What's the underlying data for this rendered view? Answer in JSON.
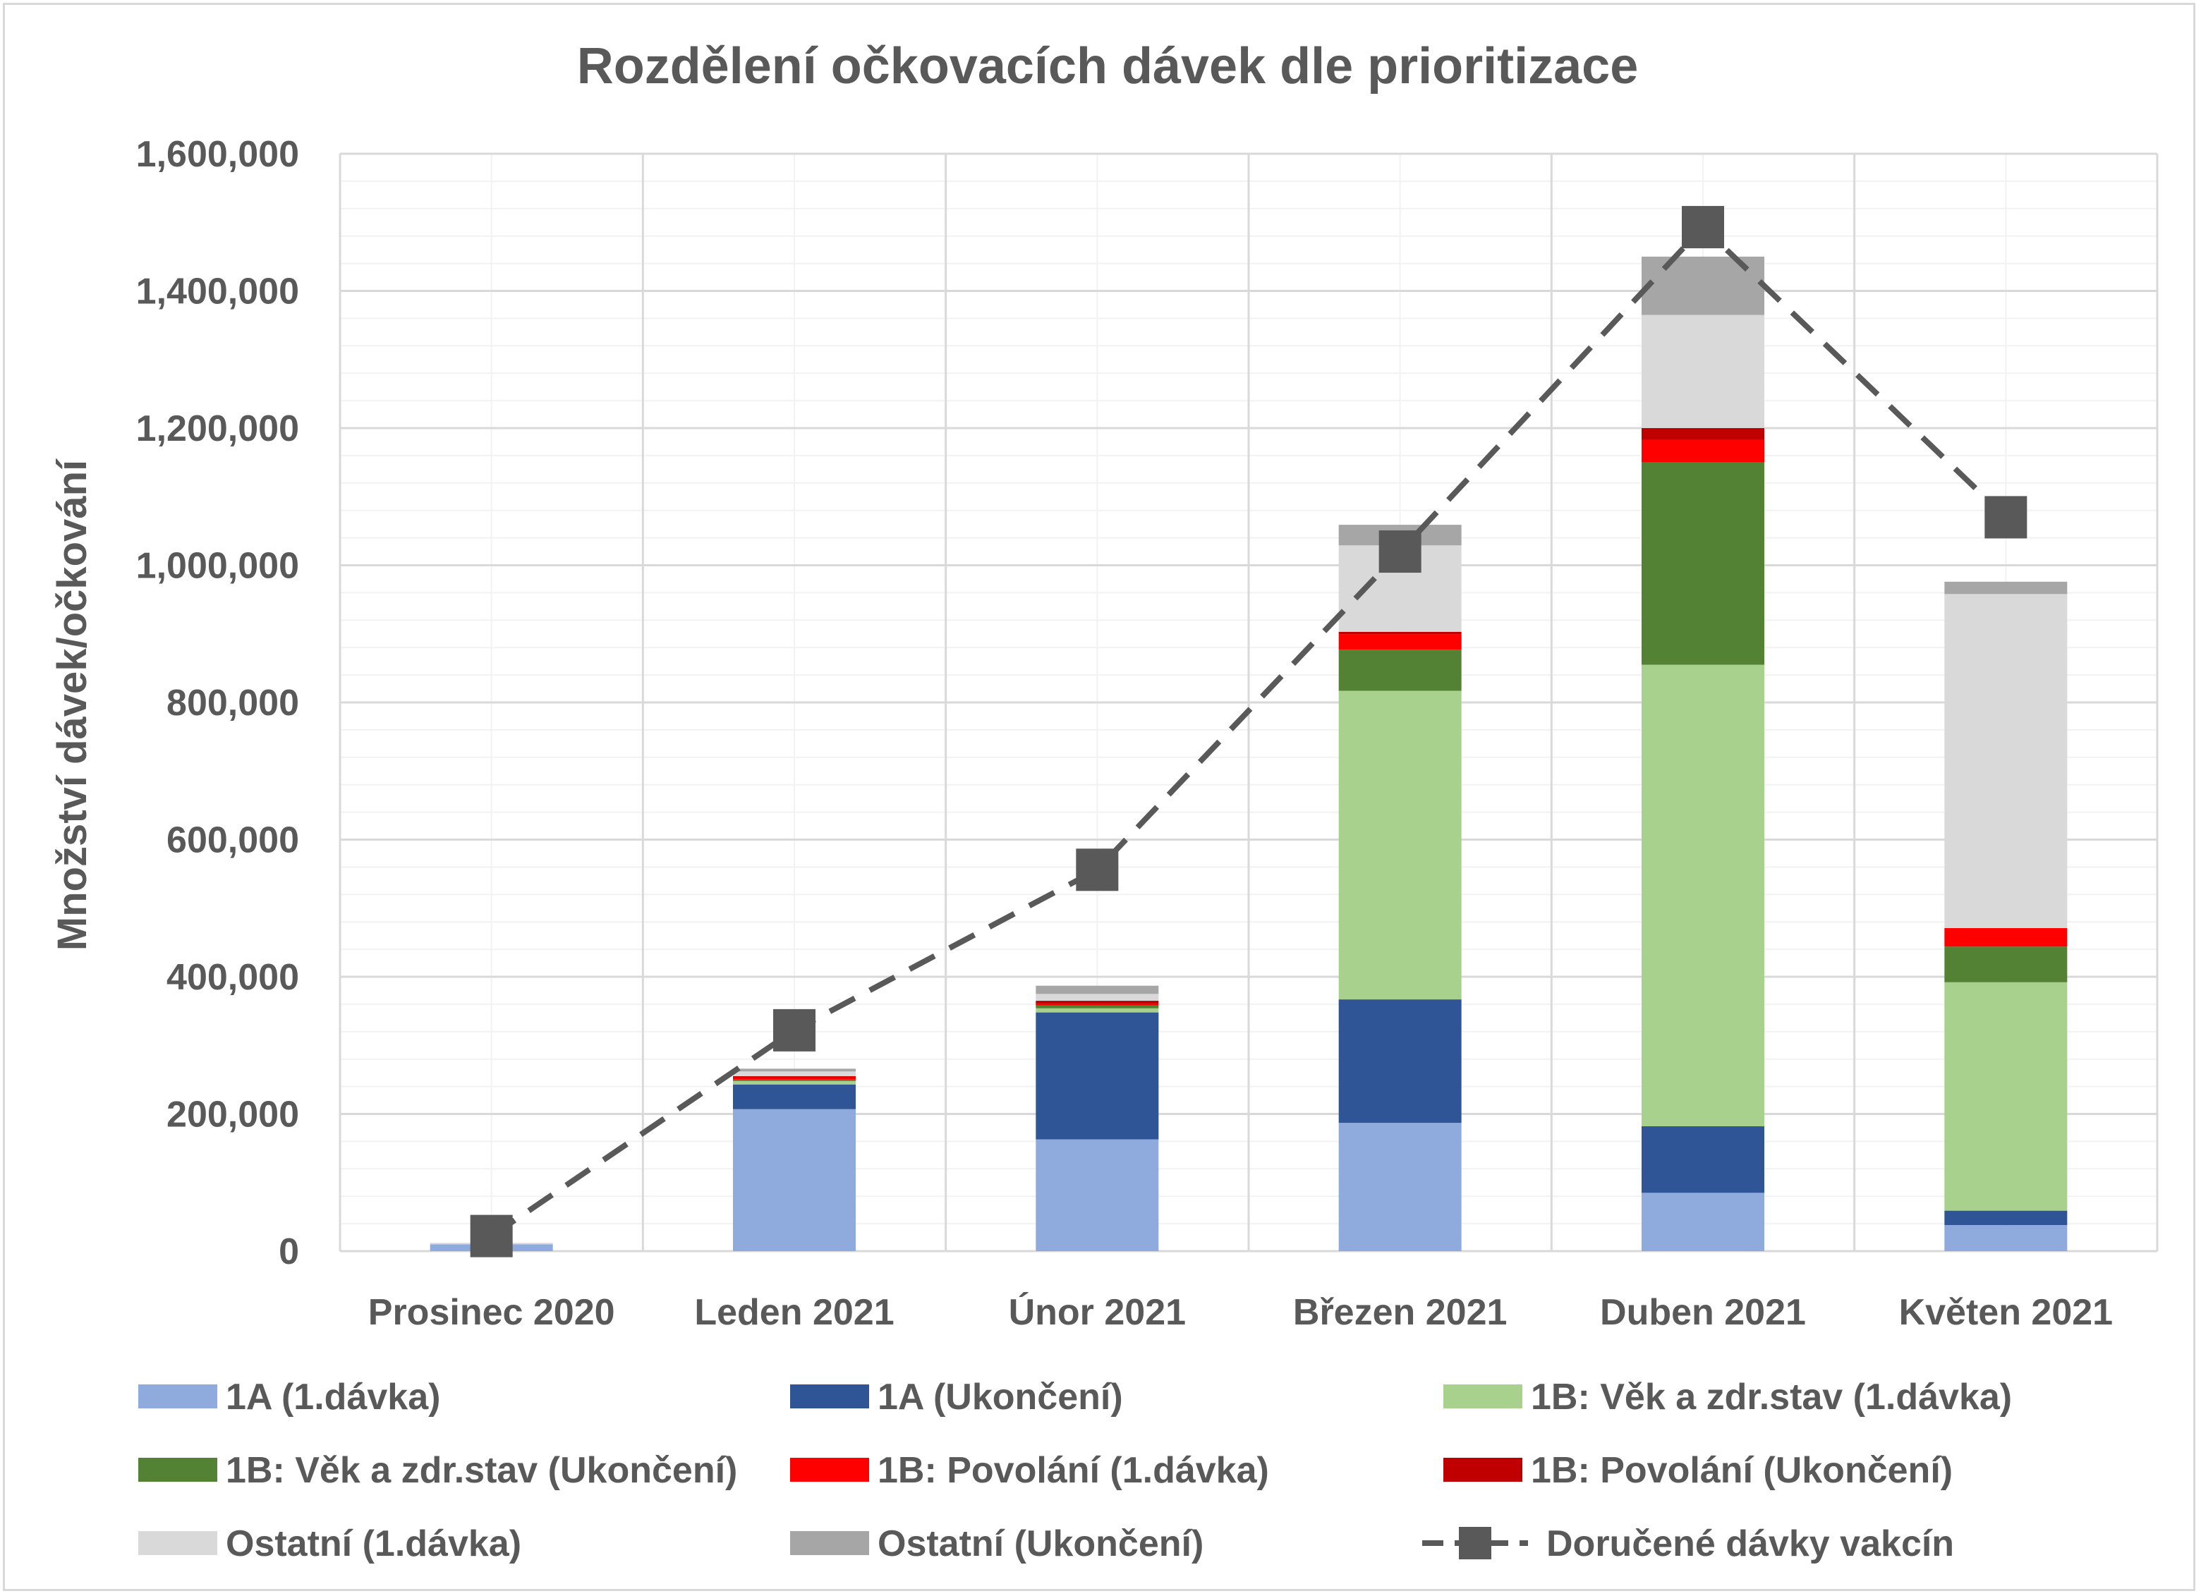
{
  "chart_data": {
    "type": "bar",
    "stacked": true,
    "title": "Rozdělení očkovacích dávek dle prioritizace",
    "ylabel": "Množství dávek/očkování",
    "xlabel": "",
    "ylim": [
      0,
      1600000
    ],
    "yticks": [
      "0",
      "200,000",
      "400,000",
      "600,000",
      "800,000",
      "1,000,000",
      "1,200,000",
      "1,400,000",
      "1,600,000"
    ],
    "grid": true,
    "legend_position": "bottom",
    "categories": [
      "Prosinec 2020",
      "Leden 2021",
      "Únor 2021",
      "Březen 2021",
      "Duben 2021",
      "Květen 2021"
    ],
    "series": [
      {
        "name": "1A (1.dávka)",
        "color": "#8faadc",
        "values": [
          10000,
          207000,
          163000,
          187000,
          85000,
          38000
        ]
      },
      {
        "name": "1A (Ukončení)",
        "color": "#2f5597",
        "values": [
          0,
          36000,
          185000,
          180000,
          97000,
          21000
        ]
      },
      {
        "name": "1B: Věk a zdr.stav (1.dávka)",
        "color": "#a9d18e",
        "values": [
          0,
          5000,
          6000,
          450000,
          673000,
          333000
        ]
      },
      {
        "name": "1B: Věk a zdr.stav (Ukončení)",
        "color": "#548235",
        "values": [
          0,
          2000,
          4000,
          60000,
          295000,
          52000
        ]
      },
      {
        "name": "1B: Povolání (1.dávka)",
        "color": "#ff0000",
        "values": [
          0,
          3000,
          3000,
          22000,
          33000,
          27000
        ]
      },
      {
        "name": "1B: Povolání (Ukončení)",
        "color": "#c00000",
        "values": [
          0,
          2000,
          4000,
          4000,
          17000,
          0
        ]
      },
      {
        "name": "Ostatní (1.dávka)",
        "color": "#d9d9d9",
        "values": [
          2000,
          7000,
          10000,
          126000,
          165000,
          487000
        ]
      },
      {
        "name": "Ostatní (Ukončení)",
        "color": "#a6a6a6",
        "values": [
          0,
          4000,
          12000,
          30000,
          85000,
          18000
        ]
      }
    ],
    "line_series": {
      "name": "Doručené dávky vakcín",
      "color": "#595959",
      "style": "dashed",
      "marker": "square",
      "values": [
        22000,
        322000,
        556000,
        1020000,
        1493000,
        1070000
      ]
    }
  }
}
